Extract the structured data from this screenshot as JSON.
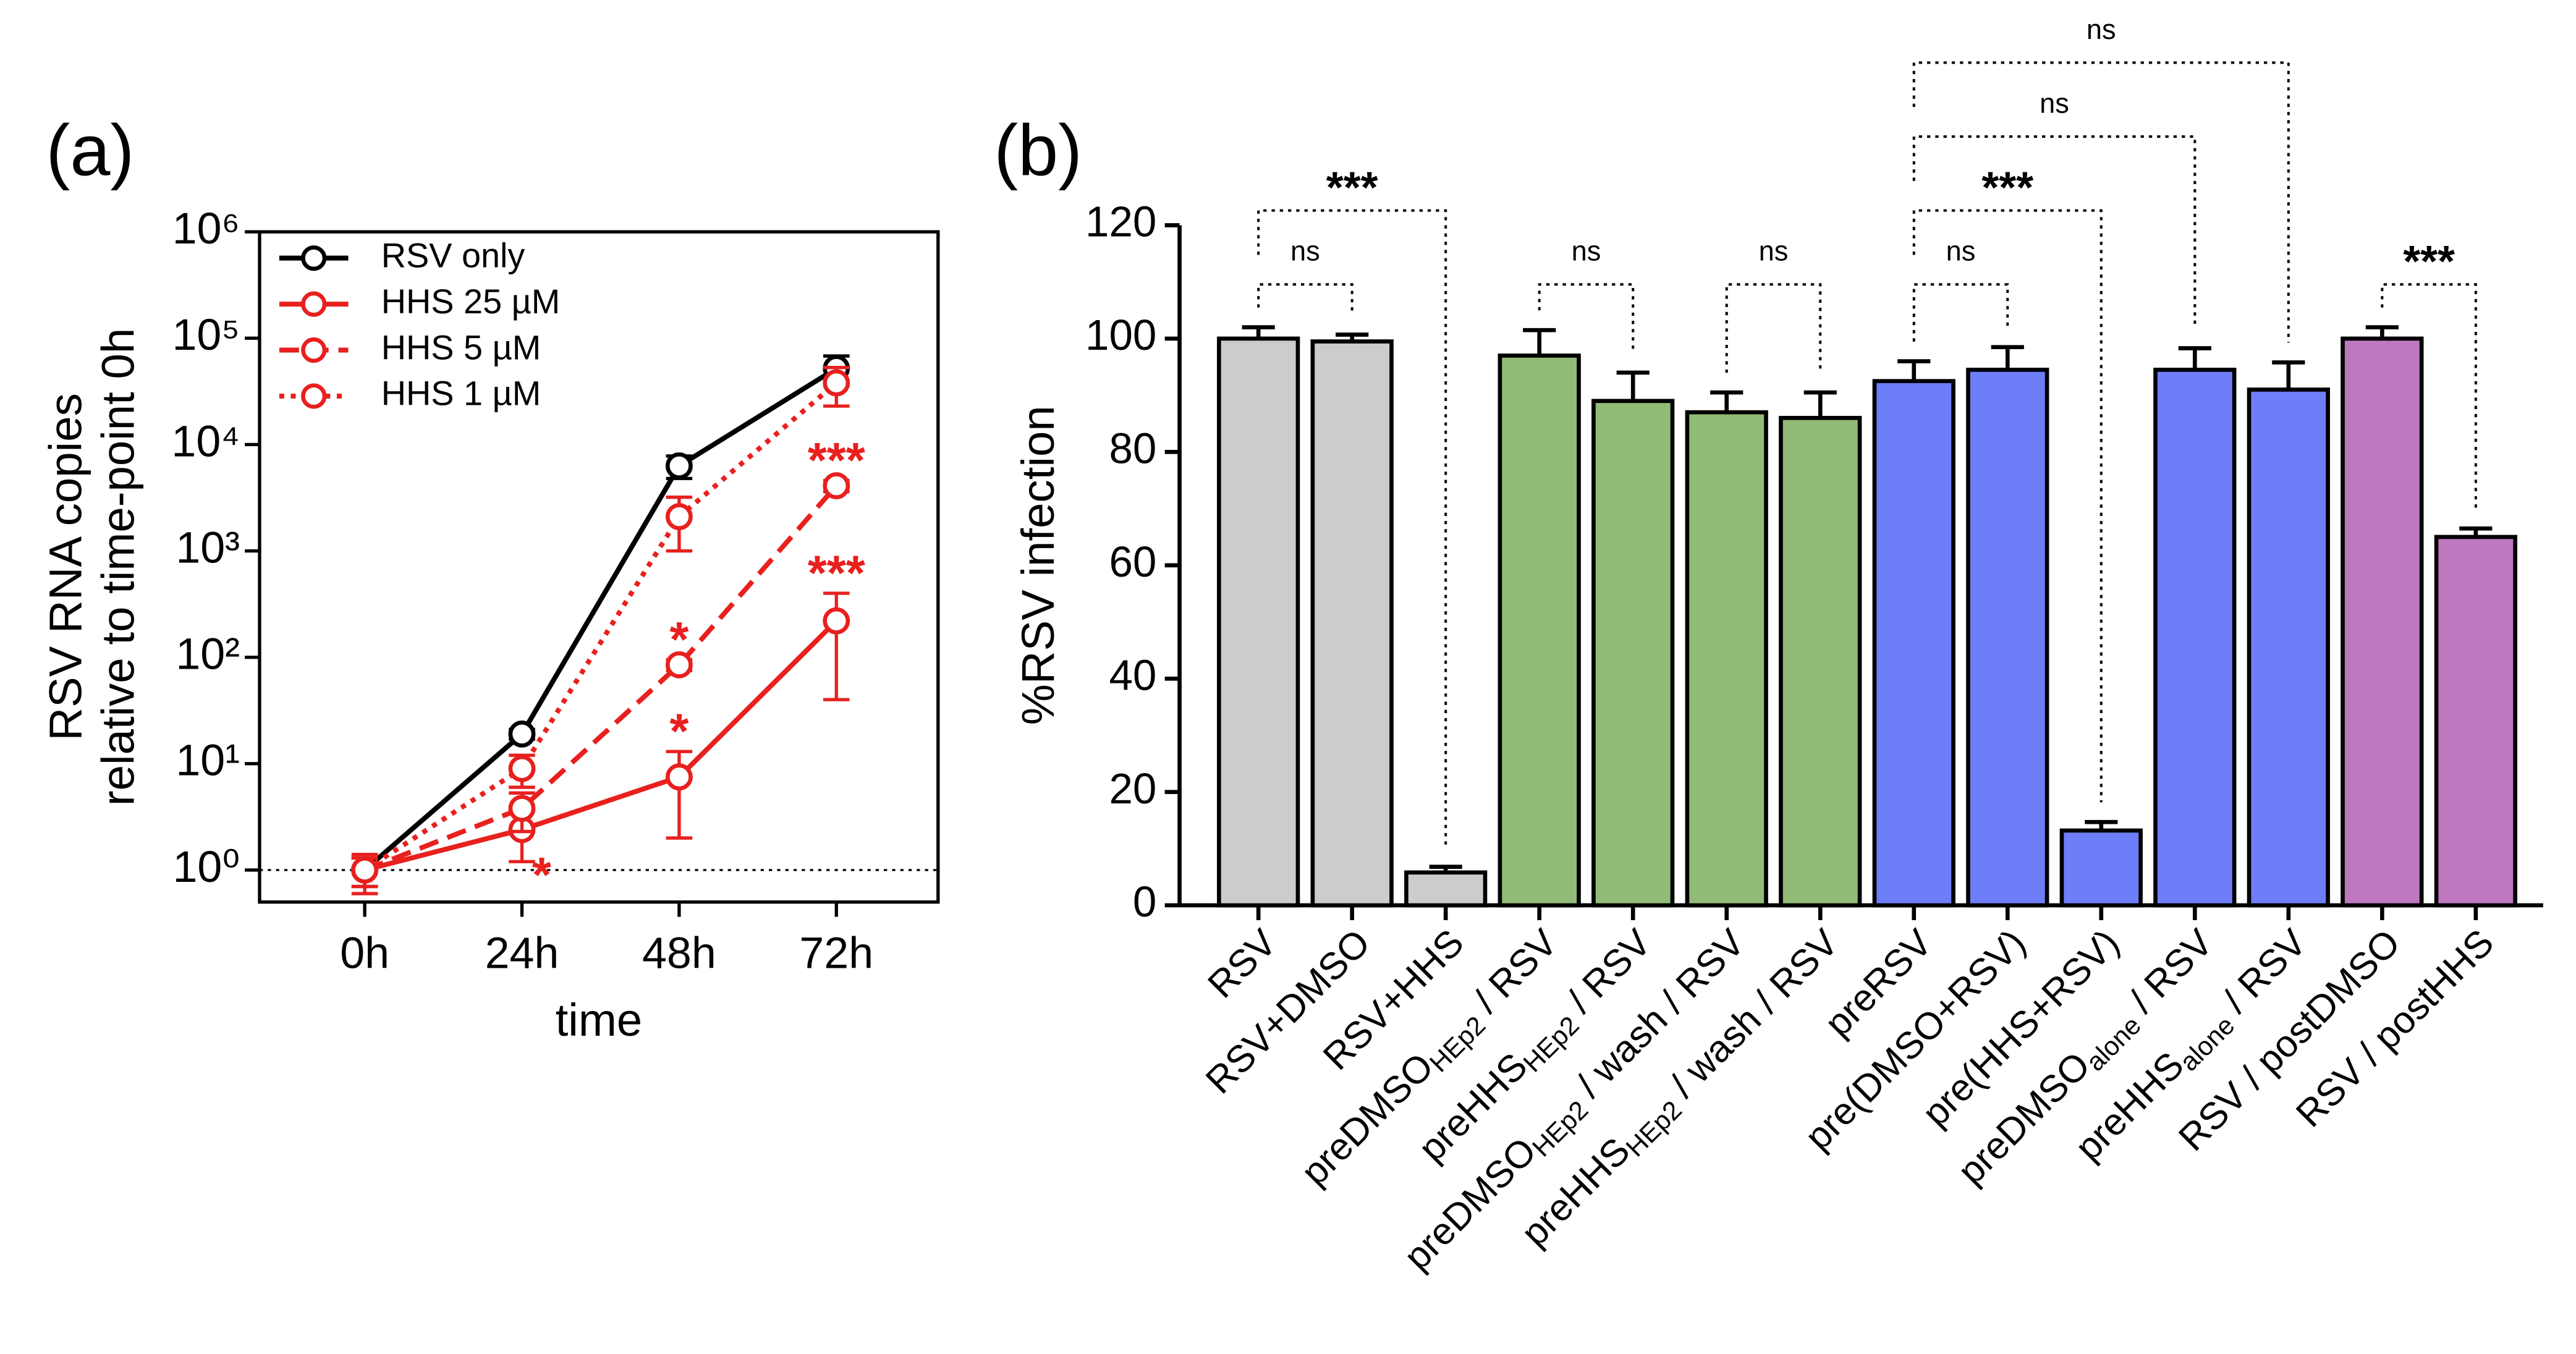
{
  "chart_data": [
    {
      "type": "line",
      "panel_label": "(a)",
      "ylabel": [
        "RSV RNA copies",
        "relative to time-point 0h"
      ],
      "xlabel": "time",
      "categories": [
        "0h",
        "24h",
        "48h",
        "72h"
      ],
      "log_y": true,
      "ylim": [
        0.5,
        1000000
      ],
      "yticks": [
        {
          "value": 1,
          "label": "10⁰"
        },
        {
          "value": 10,
          "label": "10¹"
        },
        {
          "value": 100,
          "label": "10²"
        },
        {
          "value": 1000,
          "label": "10³"
        },
        {
          "value": 10000,
          "label": "10⁴"
        },
        {
          "value": 100000,
          "label": "10⁵"
        },
        {
          "value": 1000000,
          "label": "10⁶"
        }
      ],
      "reference_line": 1,
      "legend": "upper left",
      "series": [
        {
          "name": "RSV only",
          "color": "#000000",
          "line_style": "solid",
          "values": [
            1,
            19,
            6300,
            52000
          ],
          "errors": [
            0.3,
            2,
            1500,
            16000
          ]
        },
        {
          "name": "HHS 25 µM",
          "color": "#e8201e",
          "line_style": "solid",
          "values": [
            1,
            2.4,
            7.5,
            220
          ],
          "errors": [
            0.4,
            1.2,
            5.5,
            180
          ]
        },
        {
          "name": "HHS 5 µM",
          "color": "#e8201e",
          "line_style": "dashed",
          "values": [
            1,
            3.8,
            85,
            4100
          ],
          "errors": [
            0.3,
            1.5,
            10,
            500
          ]
        },
        {
          "name": "HHS 1 µM",
          "color": "#e8201e",
          "line_style": "dotted",
          "values": [
            1,
            9,
            2100,
            38000
          ],
          "errors": [
            0.3,
            3,
            1100,
            15000
          ]
        }
      ],
      "annotations": [
        {
          "text": "*",
          "series": 1,
          "index": 1,
          "position": "below"
        },
        {
          "text": "*",
          "series": 1,
          "index": 2,
          "position": "above"
        },
        {
          "text": "***",
          "series": 1,
          "index": 3,
          "position": "above"
        },
        {
          "text": "*",
          "series": 2,
          "index": 2,
          "position": "above"
        },
        {
          "text": "***",
          "series": 2,
          "index": 3,
          "position": "above"
        }
      ]
    },
    {
      "type": "bar",
      "panel_label": "(b)",
      "ylabel": "%RSV infection",
      "categories": [
        "RSV",
        "RSV+DMSO",
        "RSV+HHS",
        {
          "base": "preDMSO",
          "sub": "HEp2",
          "rest": " / RSV"
        },
        {
          "base": "preHHS",
          "sub": "HEp2",
          "rest": " / RSV"
        },
        {
          "base": "preDMSO",
          "sub": "HEp2",
          "rest": " / wash / RSV"
        },
        {
          "base": "preHHS",
          "sub": "HEp2",
          "rest": " / wash / RSV"
        },
        "preRSV",
        "pre(DMSO+RSV)",
        "pre(HHS+RSV)",
        {
          "base": "preDMSO",
          "sub": "alone",
          "rest": " / RSV"
        },
        {
          "base": "preHHS",
          "sub": "alone",
          "rest": " / RSV"
        },
        "RSV / postDMSO",
        "RSV / postHHS"
      ],
      "values": [
        100,
        99.5,
        5.8,
        97,
        89,
        87,
        86,
        92.5,
        94.5,
        13.2,
        94.5,
        91,
        100,
        65
      ],
      "errors": [
        2,
        1.2,
        1,
        4.5,
        5,
        3.5,
        4.5,
        3.5,
        4,
        1.5,
        3.8,
        4.8,
        2,
        1.5
      ],
      "colors": [
        "#cccccc",
        "#cccccc",
        "#cccccc",
        "#93bb78",
        "#93bb78",
        "#93bb78",
        "#93bb78",
        "#6e7ef8",
        "#6e7ef8",
        "#6e7ef8",
        "#6e7ef8",
        "#6e7ef8",
        "#bf77bf",
        "#bf77bf"
      ],
      "ylim": [
        0,
        120
      ],
      "yticks": [
        0,
        20,
        40,
        60,
        80,
        100,
        120
      ],
      "comparisons": [
        {
          "groups": [
            0,
            1
          ],
          "label": "ns"
        },
        {
          "groups": [
            0,
            2
          ],
          "label": "***"
        },
        {
          "groups": [
            3,
            4
          ],
          "label": "ns"
        },
        {
          "groups": [
            5,
            6
          ],
          "label": "ns"
        },
        {
          "groups": [
            7,
            8
          ],
          "label": "ns"
        },
        {
          "groups": [
            7,
            9
          ],
          "label": "***"
        },
        {
          "groups": [
            7,
            10
          ],
          "label": "ns"
        },
        {
          "groups": [
            7,
            11
          ],
          "label": "ns"
        },
        {
          "groups": [
            12,
            13
          ],
          "label": "***"
        }
      ]
    }
  ]
}
